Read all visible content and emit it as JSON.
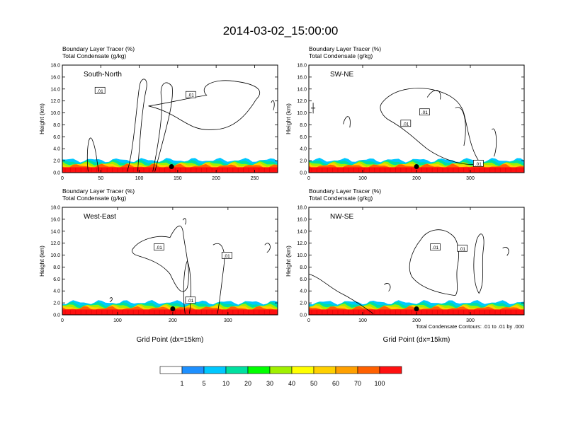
{
  "title": "2014-03-02_15:00:00",
  "colorbar": {
    "colors": [
      "#ffffff",
      "#1e90ff",
      "#00c8ff",
      "#00e0a0",
      "#00ff00",
      "#a0f000",
      "#ffff00",
      "#ffd000",
      "#ffa000",
      "#ff6000",
      "#ff1010"
    ],
    "labels": [
      "1",
      "5",
      "10",
      "20",
      "30",
      "40",
      "50",
      "60",
      "70",
      "100"
    ]
  },
  "contour_note": "Total Condensate Contours: .01 to .01 by .000",
  "chart_data": [
    {
      "type": "heatmap",
      "title_line1": "Boundary Layer Tracer   (%)",
      "title_line2": "Total Condensate   (g/kg)",
      "panel_label": "South-North",
      "ylabel": "Height (km)",
      "xlabel": "",
      "xlim": [
        0,
        280
      ],
      "ylim": [
        0,
        18
      ],
      "xticks": [
        "0",
        "50",
        "100",
        "150",
        "200",
        "250"
      ],
      "xtick_values": [
        0,
        50,
        100,
        150,
        200,
        250
      ],
      "yticks": [
        "0.0",
        "2.0",
        "4.0",
        "6.0",
        "8.0",
        "10.0",
        "12.0",
        "14.0",
        "16.0",
        "18.0"
      ],
      "contour_labels": [
        {
          "text": ".01",
          "x": 49,
          "y": 13.7
        },
        {
          "text": ".01",
          "x": 167,
          "y": 13.0
        }
      ],
      "marker_point": {
        "x": 142,
        "y": 1.0
      }
    },
    {
      "type": "heatmap",
      "title_line1": "Boundary Layer Tracer   (%)",
      "title_line2": "Total Condensate   (g/kg)",
      "panel_label": "SW-NE",
      "ylabel": "Height (km)",
      "xlabel": "",
      "xlim": [
        0,
        400
      ],
      "ylim": [
        0,
        18
      ],
      "xticks": [
        "0",
        "100",
        "200",
        "300"
      ],
      "xtick_values": [
        0,
        100,
        200,
        300
      ],
      "yticks": [
        "0.0",
        "2.0",
        "4.0",
        "6.0",
        "8.0",
        "10.0",
        "12.0",
        "14.0",
        "16.0",
        "18.0"
      ],
      "contour_labels": [
        {
          "text": ".01",
          "x": 215,
          "y": 10.1
        },
        {
          "text": ".01",
          "x": 180,
          "y": 8.2
        },
        {
          "text": ".01",
          "x": 315,
          "y": 1.5
        }
      ],
      "marker_point": {
        "x": 200,
        "y": 1.0
      }
    },
    {
      "type": "heatmap",
      "title_line1": "Boundary Layer Tracer   (%)",
      "title_line2": "Total Condensate   (g/kg)",
      "panel_label": "West-East",
      "ylabel": "Height (km)",
      "xlabel": "Grid Point (dx=15km)",
      "xlim": [
        0,
        390
      ],
      "ylim": [
        0,
        18
      ],
      "xticks": [
        "0",
        "100",
        "200",
        "300"
      ],
      "xtick_values": [
        0,
        100,
        200,
        300
      ],
      "yticks": [
        "0.0",
        "2.0",
        "4.0",
        "6.0",
        "8.0",
        "10.0",
        "12.0",
        "14.0",
        "16.0",
        "18.0"
      ],
      "contour_labels": [
        {
          "text": ".01",
          "x": 175,
          "y": 11.3
        },
        {
          "text": ".01",
          "x": 298,
          "y": 9.9
        },
        {
          "text": ".01",
          "x": 232,
          "y": 2.4
        }
      ],
      "marker_point": {
        "x": 200,
        "y": 1.0
      }
    },
    {
      "type": "heatmap",
      "title_line1": "Boundary Layer Tracer   (%)",
      "title_line2": "Total Condensate   (g/kg)",
      "panel_label": "NW-SE",
      "ylabel": "Height (km)",
      "xlabel": "Grid Point (dx=15km)",
      "xlim": [
        0,
        400
      ],
      "ylim": [
        0,
        18
      ],
      "xticks": [
        "0",
        "100",
        "200",
        "300"
      ],
      "xtick_values": [
        0,
        100,
        200,
        300
      ],
      "yticks": [
        "0.0",
        "2.0",
        "4.0",
        "6.0",
        "8.0",
        "10.0",
        "12.0",
        "14.0",
        "16.0",
        "18.0"
      ],
      "contour_labels": [
        {
          "text": ".01",
          "x": 235,
          "y": 11.3
        },
        {
          "text": ".01",
          "x": 285,
          "y": 11.1
        }
      ],
      "marker_point": {
        "x": 200,
        "y": 1.0
      }
    }
  ]
}
